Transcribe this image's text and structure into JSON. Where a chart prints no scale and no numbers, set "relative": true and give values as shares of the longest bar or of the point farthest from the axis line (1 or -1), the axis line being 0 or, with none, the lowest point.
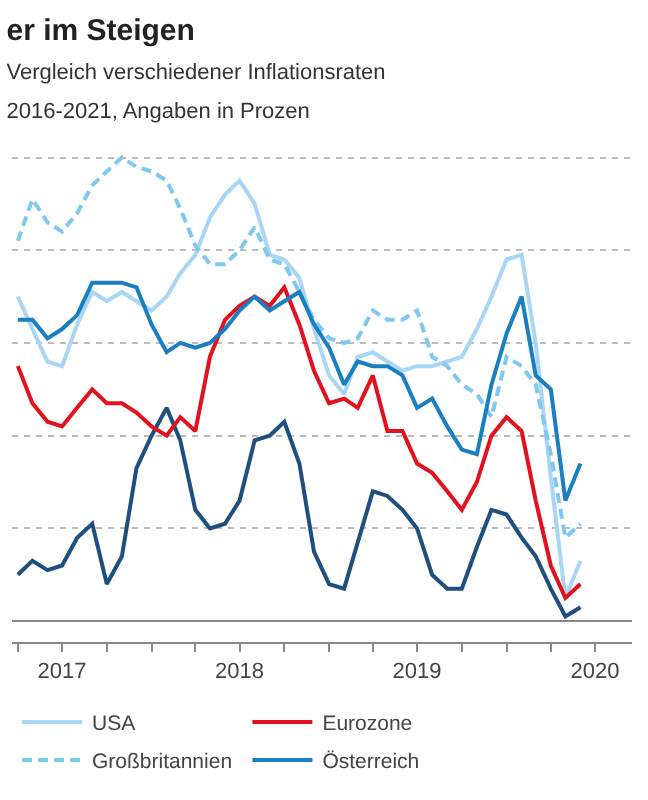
{
  "chart_data": {
    "type": "line",
    "title": "er im Steigen",
    "subtitle": "Vergleich verschiedener Inflationsraten 2016-2021, Angaben in Prozen",
    "relative": true,
    "grid": "y",
    "legend": "bottom",
    "marker": "none",
    "x": [
      "2017-04",
      "2017-05",
      "2017-06",
      "2017-07",
      "2017-08",
      "2017-09",
      "2017-10",
      "2017-11",
      "2017-12",
      "2018-01",
      "2018-02",
      "2018-03",
      "2018-04",
      "2018-05",
      "2018-06",
      "2018-07",
      "2018-08",
      "2018-09",
      "2018-10",
      "2018-11",
      "2018-12",
      "2019-01",
      "2019-02",
      "2019-03",
      "2019-04",
      "2019-05",
      "2019-06",
      "2019-07",
      "2019-08",
      "2019-09",
      "2019-10",
      "2019-11",
      "2019-12",
      "2020-01",
      "2020-02",
      "2020-03",
      "2020-04",
      "2020-05",
      "2020-06"
    ],
    "xlim": [
      "2017-03-20",
      "2020-09-15"
    ],
    "xticks": [
      {
        "value": "2017-04-01",
        "label": null
      },
      {
        "value": "2017-07-01",
        "label": "2017"
      },
      {
        "value": "2017-10-01",
        "label": null
      },
      {
        "value": "2018-01-01",
        "label": null
      },
      {
        "value": "2018-04-01",
        "label": null
      },
      {
        "value": "2018-07-01",
        "label": "2018"
      },
      {
        "value": "2018-10-01",
        "label": null
      },
      {
        "value": "2019-01-01",
        "label": null
      },
      {
        "value": "2019-04-01",
        "label": null
      },
      {
        "value": "2019-07-01",
        "label": "2019"
      },
      {
        "value": "2019-10-01",
        "label": null
      },
      {
        "value": "2020-01-01",
        "label": null
      },
      {
        "value": "2020-04-01",
        "label": null
      },
      {
        "value": "2020-07-01",
        "label": "2020"
      }
    ],
    "series": [
      {
        "color": "#1f4f7f",
        "line_style": "solid",
        "values": [
          0.1,
          0.13,
          0.11,
          0.12,
          0.18,
          0.21,
          0.08,
          0.14,
          0.33,
          0.4,
          0.46,
          0.39,
          0.24,
          0.2,
          0.21,
          0.26,
          0.39,
          0.4,
          0.43,
          0.34,
          0.15,
          0.08,
          0.07,
          0.17,
          0.28,
          0.27,
          0.24,
          0.2,
          0.1,
          0.07,
          0.07,
          0.16,
          0.24,
          0.23,
          0.18,
          0.14,
          0.07,
          0.01,
          0.03
        ]
      },
      {
        "name": "USA",
        "color": "#a9d6f5",
        "line_style": "solid",
        "values": [
          0.7,
          0.63,
          0.56,
          0.55,
          0.64,
          0.71,
          0.69,
          0.71,
          0.69,
          0.67,
          0.7,
          0.75,
          0.79,
          0.87,
          0.92,
          0.95,
          0.9,
          0.79,
          0.78,
          0.74,
          0.63,
          0.53,
          0.49,
          0.57,
          0.58,
          0.56,
          0.54,
          0.55,
          0.55,
          0.56,
          0.57,
          0.63,
          0.7,
          0.78,
          0.79,
          0.6,
          0.31,
          0.05,
          0.13
        ]
      },
      {
        "name": "Eurozone",
        "color": "#e3101e",
        "line_style": "solid",
        "values": [
          0.55,
          0.47,
          0.43,
          0.42,
          0.46,
          0.5,
          0.47,
          0.47,
          0.45,
          0.42,
          0.4,
          0.44,
          0.41,
          0.57,
          0.65,
          0.68,
          0.7,
          0.68,
          0.72,
          0.64,
          0.54,
          0.47,
          0.48,
          0.46,
          0.53,
          0.41,
          0.41,
          0.34,
          0.32,
          0.28,
          0.24,
          0.3,
          0.4,
          0.44,
          0.41,
          0.26,
          0.12,
          0.05,
          0.08
        ]
      },
      {
        "name": "Großbritannien",
        "color": "#7fc8f0",
        "line_style": "dashed",
        "values": [
          0.82,
          0.91,
          0.86,
          0.84,
          0.88,
          0.94,
          0.97,
          1.0,
          0.98,
          0.97,
          0.95,
          0.89,
          0.81,
          0.77,
          0.77,
          0.8,
          0.85,
          0.78,
          0.77,
          0.71,
          0.65,
          0.61,
          0.6,
          0.61,
          0.67,
          0.65,
          0.65,
          0.67,
          0.57,
          0.55,
          0.51,
          0.49,
          0.44,
          0.57,
          0.55,
          0.51,
          0.36,
          0.18,
          0.21
        ]
      },
      {
        "name": "Österreich",
        "color": "#1a7fc1",
        "line_style": "solid",
        "values": [
          0.65,
          0.65,
          0.61,
          0.63,
          0.66,
          0.73,
          0.73,
          0.73,
          0.72,
          0.64,
          0.58,
          0.6,
          0.59,
          0.6,
          0.63,
          0.67,
          0.7,
          0.67,
          0.69,
          0.71,
          0.64,
          0.59,
          0.51,
          0.56,
          0.55,
          0.55,
          0.53,
          0.46,
          0.48,
          0.42,
          0.37,
          0.36,
          0.51,
          0.62,
          0.7,
          0.53,
          0.5,
          0.26,
          0.34
        ]
      }
    ]
  }
}
